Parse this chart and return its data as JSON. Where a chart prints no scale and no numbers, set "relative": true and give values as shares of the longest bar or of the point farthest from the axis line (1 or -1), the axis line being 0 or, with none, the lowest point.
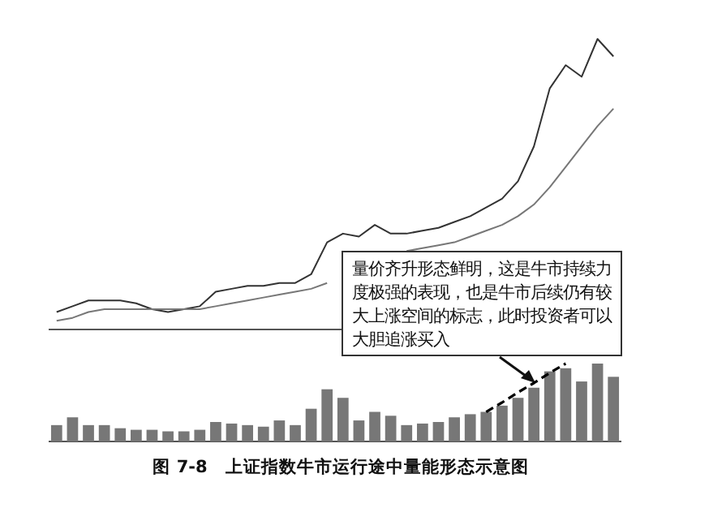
{
  "chart_data": [
    {
      "type": "line",
      "relative": true,
      "categories": [
        null,
        null,
        null,
        null,
        null,
        null,
        null,
        null,
        null,
        null,
        null,
        null,
        null,
        null,
        null,
        null,
        null,
        null,
        null,
        null,
        null,
        null,
        null,
        null,
        null,
        null,
        null,
        null,
        null,
        null,
        null,
        null,
        null,
        null,
        null,
        null
      ],
      "series": [
        {
          "color": "#333333",
          "values": [
            0.06,
            0.08,
            0.1,
            0.1,
            0.1,
            0.09,
            0.07,
            0.06,
            0.07,
            0.08,
            0.13,
            0.14,
            0.15,
            0.15,
            0.16,
            0.16,
            0.19,
            0.3,
            0.33,
            0.32,
            0.36,
            0.33,
            0.33,
            0.34,
            0.35,
            0.37,
            0.39,
            0.42,
            0.45,
            0.51,
            0.63,
            0.83,
            0.91,
            0.87,
            1.0,
            0.94
          ]
        },
        {
          "color": "#777777",
          "values": [
            0.03,
            0.04,
            0.06,
            0.07,
            0.07,
            0.07,
            0.07,
            0.07,
            0.07,
            0.07,
            0.08,
            0.09,
            0.1,
            0.11,
            0.12,
            0.13,
            0.14,
            0.16,
            null,
            null,
            null,
            null,
            0.27,
            0.28,
            0.29,
            0.3,
            0.32,
            0.34,
            0.36,
            0.39,
            0.43,
            0.49,
            0.56,
            0.63,
            0.7,
            0.76
          ]
        }
      ],
      "annotations": [
        "量价齐升形态鲜明，这是牛市持续力度极强的表现，也是牛市后续仍有较大上涨空间的标志，此时投资者可以大胆追涨买入"
      ]
    },
    {
      "type": "bar",
      "relative": true,
      "categories": [
        null,
        null,
        null,
        null,
        null,
        null,
        null,
        null,
        null,
        null,
        null,
        null,
        null,
        null,
        null,
        null,
        null,
        null,
        null,
        null,
        null,
        null,
        null,
        null,
        null,
        null,
        null,
        null,
        null,
        null,
        null,
        null,
        null,
        null,
        null,
        null
      ],
      "series": [
        {
          "color": "#777777",
          "values": [
            0.21,
            0.31,
            0.21,
            0.21,
            0.17,
            0.15,
            0.15,
            0.13,
            0.13,
            0.15,
            0.25,
            0.23,
            0.21,
            0.19,
            0.27,
            0.21,
            0.42,
            0.67,
            0.56,
            0.27,
            0.38,
            0.33,
            0.21,
            0.23,
            0.25,
            0.31,
            0.35,
            0.38,
            0.46,
            0.56,
            0.69,
            0.9,
            0.94,
            0.77,
            1.0,
            0.83
          ]
        },
        {
          "type": "line",
          "line_style": "dashed",
          "color": "#000000",
          "values": [
            null,
            null,
            null,
            null,
            null,
            null,
            null,
            null,
            null,
            null,
            null,
            null,
            null,
            null,
            null,
            null,
            null,
            null,
            null,
            null,
            null,
            null,
            null,
            null,
            null,
            null,
            null,
            0.38,
            0.5,
            0.63,
            0.75,
            0.88,
            1.0,
            null,
            null,
            null
          ]
        }
      ],
      "annotations": [
        "图 7-8　上证指数牛市运行途中量能形态示意图"
      ]
    }
  ]
}
